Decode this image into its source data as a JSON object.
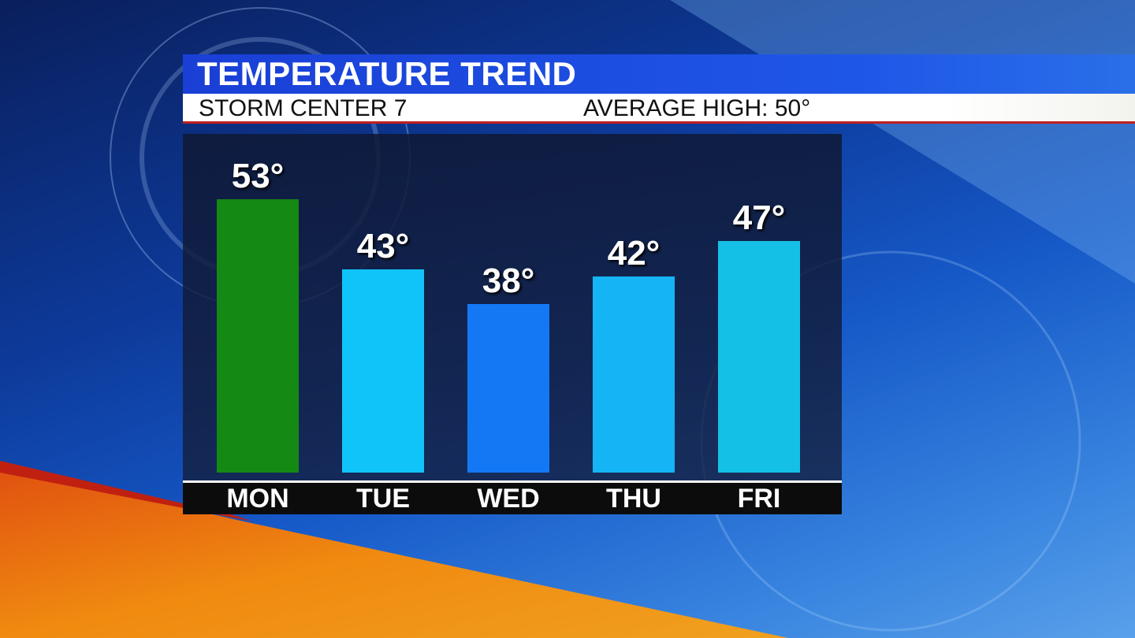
{
  "header": {
    "title": "TEMPERATURE TREND",
    "station": "STORM CENTER 7",
    "average_high": "AVERAGE HIGH: 50°"
  },
  "chart_data": {
    "type": "bar",
    "title": "TEMPERATURE TREND",
    "categories": [
      "MON",
      "TUE",
      "WED",
      "THU",
      "FRI"
    ],
    "values": [
      53,
      43,
      38,
      42,
      47
    ],
    "data_labels": [
      "53°",
      "43°",
      "38°",
      "42°",
      "47°"
    ],
    "colors": [
      "#148a14",
      "#10c4fa",
      "#1478f5",
      "#14b4f5",
      "#14c0e6"
    ],
    "ylim": [
      14,
      62
    ],
    "grid": false,
    "legend": "none"
  }
}
